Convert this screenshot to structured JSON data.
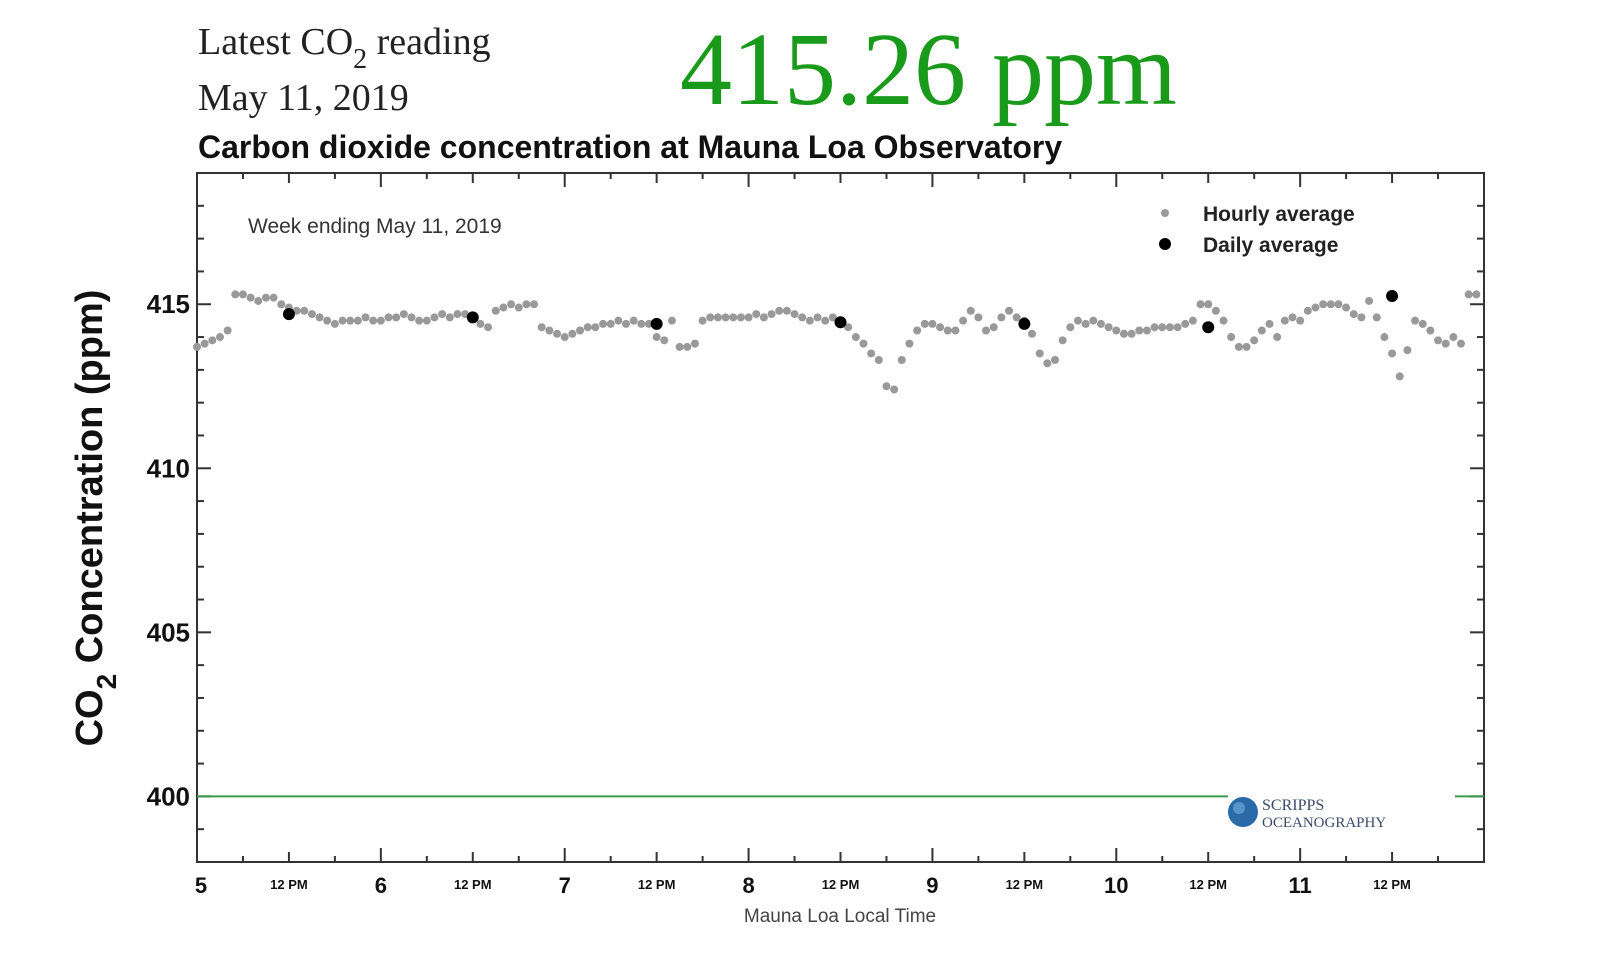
{
  "header": {
    "latest_label_prefix": "Latest CO",
    "latest_label_sub": "2",
    "latest_label_suffix": " reading",
    "latest_date": "May 11, 2019",
    "latest_value": "415.26 ppm",
    "latest_value_color": "#1a9a1a"
  },
  "chart_data": {
    "type": "scatter",
    "title": "Carbon dioxide concentration at Mauna Loa Observatory",
    "annotation": "Week ending May 11, 2019",
    "ylabel_prefix": "CO",
    "ylabel_sub": "2",
    "ylabel_suffix": " Concentration (ppm)",
    "xlabel": "Mauna Loa Local Time",
    "ylim": [
      398,
      419
    ],
    "xlim": [
      5,
      12
    ],
    "yticks": [
      400,
      405,
      410,
      415
    ],
    "xticks_major": [
      5,
      6,
      7,
      8,
      9,
      10,
      11
    ],
    "xticks_minor_label": "12 PM",
    "reference_line": {
      "y": 400,
      "color": "#3a9a4a"
    },
    "legend": {
      "position": "top-right",
      "entries": [
        "Hourly average",
        "Daily average"
      ]
    },
    "series": [
      {
        "name": "Hourly average",
        "color": "#999999",
        "days": [
          5,
          6,
          7,
          8,
          9,
          10,
          11
        ],
        "hourly_values": [
          [
            413.7,
            413.8,
            413.9,
            414.0,
            414.2,
            415.3,
            415.3,
            415.2,
            415.1,
            415.2,
            415.2,
            415.0,
            414.9,
            414.8,
            414.8,
            414.7,
            414.6,
            414.5,
            414.4,
            414.5,
            414.5,
            414.5,
            414.6,
            414.5
          ],
          [
            414.5,
            414.6,
            414.6,
            414.7,
            414.6,
            414.5,
            414.5,
            414.6,
            414.7,
            414.6,
            414.7,
            414.7,
            414.6,
            414.4,
            414.3,
            414.8,
            414.9,
            415.0,
            414.9,
            415.0,
            415.0,
            414.3,
            414.2,
            414.1
          ],
          [
            414.0,
            414.1,
            414.2,
            414.3,
            414.3,
            414.4,
            414.4,
            414.5,
            414.4,
            414.5,
            414.4,
            414.4,
            414.0,
            413.9,
            414.5,
            413.7,
            413.7,
            413.8,
            414.5,
            414.6,
            414.6,
            414.6,
            414.6,
            414.6
          ],
          [
            414.6,
            414.7,
            414.6,
            414.7,
            414.8,
            414.8,
            414.7,
            414.6,
            414.5,
            414.6,
            414.5,
            414.6,
            414.5,
            414.3,
            414.0,
            413.8,
            413.5,
            413.3,
            412.5,
            412.4,
            413.3,
            413.8,
            414.2,
            414.4
          ],
          [
            414.4,
            414.3,
            414.2,
            414.2,
            414.5,
            414.8,
            414.6,
            414.2,
            414.3,
            414.6,
            414.8,
            414.6,
            414.5,
            414.1,
            413.5,
            413.2,
            413.3,
            413.9,
            414.3,
            414.5,
            414.4,
            414.5,
            414.4,
            414.3
          ],
          [
            414.2,
            414.1,
            414.1,
            414.2,
            414.2,
            414.3,
            414.3,
            414.3,
            414.3,
            414.4,
            414.5,
            415.0,
            415.0,
            414.8,
            414.5,
            414.0,
            413.7,
            413.7,
            413.9,
            414.2,
            414.4,
            414.0,
            414.5,
            414.6
          ],
          [
            414.5,
            414.8,
            414.9,
            415.0,
            415.0,
            415.0,
            414.9,
            414.7,
            414.6,
            415.1,
            414.6,
            414.0,
            413.5,
            412.8,
            413.6,
            414.5,
            414.4,
            414.2,
            413.9,
            413.8,
            414.0,
            413.8,
            415.3,
            415.3
          ]
        ]
      },
      {
        "name": "Daily average",
        "color": "#000000",
        "x": [
          5.5,
          6.5,
          7.5,
          8.5,
          9.5,
          10.5,
          11.5
        ],
        "y": [
          414.7,
          414.6,
          414.4,
          414.45,
          414.4,
          414.3,
          415.25
        ]
      }
    ]
  },
  "logo": {
    "line1": "SCRIPPS",
    "line2": "OCEANOGRAPHY"
  }
}
